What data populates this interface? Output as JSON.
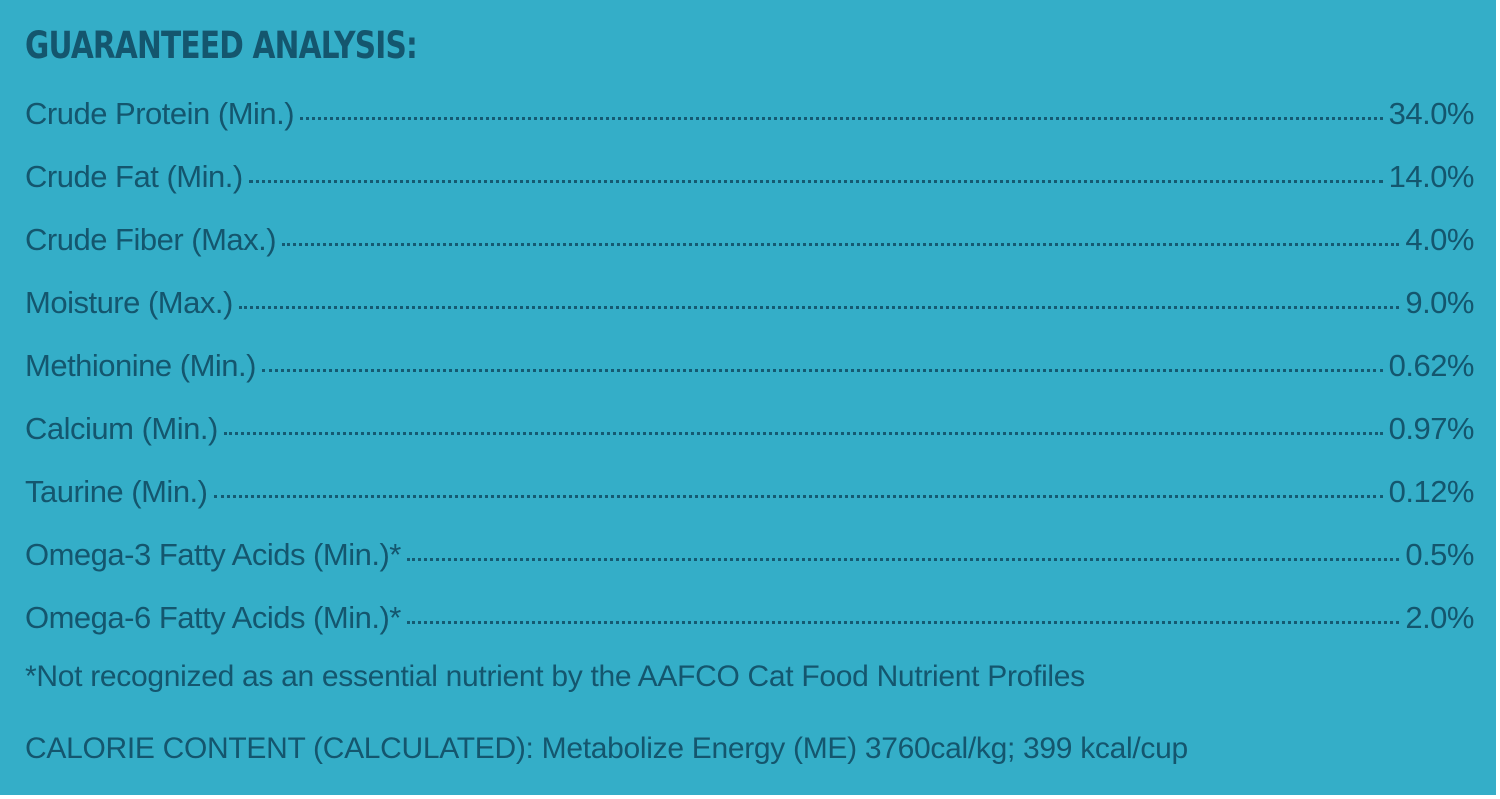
{
  "title": "GUARANTEED ANALYSIS:",
  "rows": [
    {
      "label": "Crude Protein (Min.)",
      "value": "34.0%"
    },
    {
      "label": "Crude Fat (Min.)",
      "value": "14.0%"
    },
    {
      "label": "Crude Fiber (Max.)",
      "value": "4.0%"
    },
    {
      "label": "Moisture (Max.)",
      "value": "9.0%"
    },
    {
      "label": "Methionine (Min.)",
      "value": "0.62%"
    },
    {
      "label": "Calcium (Min.)",
      "value": "0.97%"
    },
    {
      "label": "Taurine (Min.)",
      "value": "0.12%"
    },
    {
      "label": "Omega-3 Fatty Acids (Min.)*",
      "value": "0.5%"
    },
    {
      "label": "Omega-6 Fatty Acids (Min.)*",
      "value": "2.0%"
    }
  ],
  "footnote": "*Not recognized as an essential nutrient by the AAFCO Cat Food Nutrient Profiles",
  "calorie": "CALORIE CONTENT (CALCULATED): Metabolize Energy (ME) 3760cal/kg; 399 kcal/cup",
  "colors": {
    "background": "#34aec8",
    "text": "#14566e"
  }
}
